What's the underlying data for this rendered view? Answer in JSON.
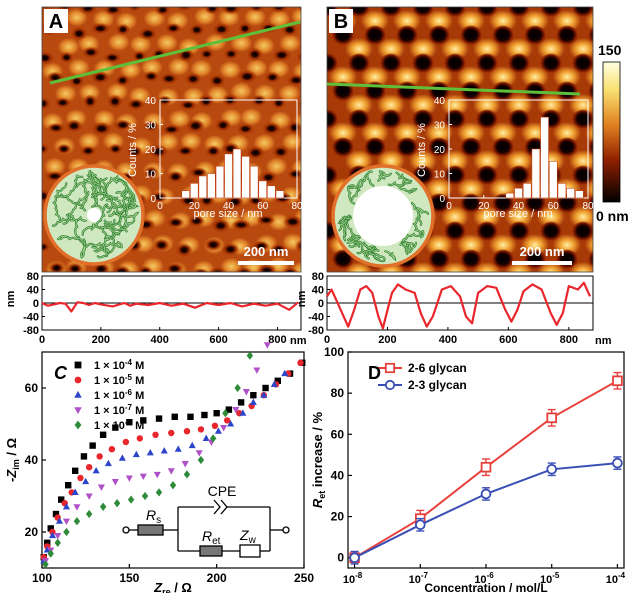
{
  "panel_a": {
    "letter": "A",
    "inset_xlabel": "pore size / nm",
    "inset_ylabel": "Counts / %",
    "scale_bar": "200 nm"
  },
  "panel_b": {
    "letter": "B",
    "inset_xlabel": "pore size / nm",
    "inset_ylabel": "Counts / %",
    "scale_bar": "200 nm"
  },
  "colorbar": {
    "max_label": "150",
    "min_label": "0 nm"
  },
  "profiles": {
    "y_unit": "nm",
    "x_unit": "nm"
  },
  "panel_c": {
    "letter": "C",
    "circuit": {
      "cpe": "CPE",
      "rs": "R",
      "rs_sub": "s",
      "ret": "R",
      "ret_sub": "et",
      "zw": "Z",
      "zw_sub": "w"
    }
  },
  "panel_d": {
    "letter": "D"
  },
  "colors": {
    "line_green": "#5fbf3a",
    "profile_red": "#e8262c",
    "pore_fill": "#cfe8c0",
    "pore_ring": "#e0702a",
    "chain_green": "#2e7d32",
    "bar_white": "#ffffff",
    "d_red": "#e8413c",
    "d_blue": "#3a4fb5"
  },
  "chart_data": [
    {
      "type": "bar",
      "panel": "A-inset",
      "x": [
        15,
        20,
        25,
        30,
        35,
        40,
        45,
        50,
        55,
        60,
        65,
        70
      ],
      "values": [
        3,
        6,
        9,
        10,
        13,
        18,
        20,
        17,
        13,
        7,
        5,
        3
      ],
      "xlabel": "pore size / nm",
      "ylabel": "Counts / %",
      "xlim": [
        0,
        80
      ],
      "ylim": [
        0,
        40
      ],
      "xticks": [
        0,
        20,
        40,
        60,
        80
      ],
      "yticks": [
        0,
        10,
        20,
        30,
        40
      ]
    },
    {
      "type": "bar",
      "panel": "B-inset",
      "x": [
        35,
        40,
        45,
        50,
        55,
        60,
        65,
        70,
        75
      ],
      "values": [
        2,
        4,
        6,
        20,
        33,
        15,
        6,
        4,
        3
      ],
      "xlabel": "pore size / nm",
      "ylabel": "Counts / %",
      "xlim": [
        0,
        80
      ],
      "ylim": [
        0,
        40
      ],
      "xticks": [
        0,
        20,
        40,
        60,
        80
      ],
      "yticks": [
        0,
        10,
        20,
        30,
        40
      ]
    },
    {
      "type": "line",
      "panel": "A-profile",
      "x": [
        0,
        20,
        40,
        60,
        80,
        100,
        120,
        140,
        160,
        180,
        200,
        240,
        280,
        300,
        320,
        360,
        400,
        440,
        480,
        520,
        560,
        600,
        640,
        680,
        720,
        760,
        800,
        840,
        870
      ],
      "y": [
        0,
        -8,
        -4,
        0,
        -2,
        -25,
        2,
        0,
        -6,
        0,
        -4,
        -10,
        0,
        -8,
        -2,
        -6,
        0,
        -8,
        -2,
        -14,
        0,
        -6,
        0,
        -10,
        -2,
        -8,
        -2,
        -20,
        2
      ],
      "xlim": [
        0,
        880
      ],
      "ylim": [
        -80,
        80
      ],
      "xticks": [
        0,
        200,
        400,
        600,
        800
      ],
      "yticks": [
        -80,
        -40,
        0,
        40,
        80
      ]
    },
    {
      "type": "line",
      "panel": "B-profile",
      "x": [
        0,
        15,
        30,
        50,
        70,
        90,
        110,
        130,
        150,
        170,
        185,
        200,
        215,
        235,
        260,
        290,
        310,
        330,
        350,
        380,
        410,
        440,
        460,
        480,
        500,
        530,
        560,
        590,
        610,
        630,
        650,
        680,
        710,
        740,
        760,
        780,
        800,
        830,
        850,
        870
      ],
      "y": [
        20,
        40,
        10,
        -30,
        -70,
        -20,
        40,
        50,
        30,
        -40,
        -75,
        -20,
        30,
        55,
        40,
        30,
        -30,
        -70,
        -40,
        40,
        50,
        20,
        -40,
        -60,
        30,
        50,
        45,
        -20,
        -55,
        -20,
        35,
        55,
        40,
        -30,
        -65,
        -30,
        50,
        40,
        60,
        20
      ],
      "xlim": [
        0,
        880
      ],
      "ylim": [
        -80,
        80
      ],
      "xticks": [
        0,
        200,
        400,
        600,
        800
      ],
      "yticks": [
        -80,
        -40,
        0,
        40,
        80
      ]
    },
    {
      "type": "scatter",
      "panel": "C",
      "xlabel": "Z",
      "xlabel_sub": "re",
      "xlabel_unit": " / Ω",
      "ylabel_prefix": "-Z",
      "ylabel_sub": "im",
      "ylabel_unit": " / Ω",
      "xlim": [
        100,
        250
      ],
      "ylim": [
        10,
        70
      ],
      "xticks": [
        100,
        150,
        200,
        250
      ],
      "yticks": [
        20,
        40,
        60
      ],
      "series": [
        {
          "name": "1 × 10",
          "sup": "-4",
          "unit": " M",
          "color": "#000000",
          "marker": "square",
          "x": [
            101,
            103,
            105,
            108,
            111,
            115,
            119,
            124,
            129,
            135,
            142,
            150,
            158,
            167,
            176,
            185,
            193,
            200,
            207,
            214,
            221,
            228,
            235,
            242,
            249
          ],
          "y": [
            13,
            17,
            21,
            25,
            29,
            33,
            37,
            41,
            44,
            47,
            49,
            50.5,
            51,
            51.5,
            52,
            52,
            52.5,
            53,
            54,
            56,
            58,
            60,
            62,
            64,
            67
          ]
        },
        {
          "name": "1 × 10",
          "sup": "-5",
          "unit": " M",
          "color": "#e8262c",
          "marker": "circle",
          "x": [
            101,
            103,
            106,
            109,
            113,
            117,
            122,
            127,
            133,
            140,
            148,
            156,
            165,
            174,
            183,
            191,
            199,
            206,
            213,
            220,
            227,
            234,
            241,
            248
          ],
          "y": [
            13,
            16,
            20,
            24,
            28,
            31,
            35,
            38,
            41,
            43,
            45,
            46,
            47,
            47.5,
            48,
            48.5,
            49.5,
            51,
            53,
            55,
            58,
            61,
            64,
            67
          ]
        },
        {
          "name": "1 × 10",
          "sup": "-6",
          "unit": " M",
          "color": "#2d45c8",
          "marker": "triangle-up",
          "x": [
            101,
            103,
            106,
            110,
            114,
            119,
            125,
            131,
            138,
            146,
            154,
            162,
            170,
            178,
            186,
            194,
            201,
            208,
            215,
            221,
            227,
            233,
            239
          ],
          "y": [
            12,
            15,
            19,
            23,
            27,
            31,
            34,
            37,
            39,
            40.5,
            41.5,
            42,
            42.5,
            43,
            44,
            46,
            48,
            50,
            53,
            56,
            58,
            61,
            64
          ]
        },
        {
          "name": "1 × 10",
          "sup": "-7",
          "unit": " M",
          "color": "#b050c8",
          "marker": "triangle-down",
          "x": [
            102,
            105,
            109,
            114,
            120,
            127,
            134,
            142,
            150,
            158,
            166,
            174,
            182,
            190,
            197,
            204,
            211,
            217,
            223,
            229
          ],
          "y": [
            12,
            15,
            19,
            23,
            27,
            30,
            32.5,
            34,
            35,
            35.5,
            36,
            37,
            39,
            42,
            45,
            49,
            54,
            59,
            65,
            72
          ]
        },
        {
          "name": "1 × 10",
          "sup": "-8",
          "unit": " M",
          "color": "#2e8b3a",
          "marker": "diamond",
          "x": [
            102,
            105,
            109,
            114,
            120,
            127,
            135,
            143,
            151,
            159,
            167,
            175,
            183,
            191,
            198,
            205,
            212,
            219
          ],
          "y": [
            11,
            14,
            17,
            20,
            23,
            25,
            27,
            28,
            29,
            30,
            31,
            33,
            36,
            40,
            46,
            53,
            60,
            69
          ]
        }
      ]
    },
    {
      "type": "line",
      "panel": "D",
      "ylabel": "R",
      "ylabel_sub": "et",
      "ylabel_unit": " increase / %",
      "xlabel": "Concentration / mol/L",
      "xticks_exp": [
        "-8",
        "-7",
        "-6",
        "-5",
        "-4"
      ],
      "tick_base": "10",
      "ylim": [
        -5,
        100
      ],
      "yticks": [
        0,
        20,
        40,
        60,
        80,
        100
      ],
      "series": [
        {
          "name": "2-6 glycan",
          "color": "#e8413c",
          "marker": "square",
          "x": [
            -8,
            -7,
            -6,
            -5,
            -4
          ],
          "y": [
            0,
            19,
            44,
            68,
            86
          ],
          "err": [
            3,
            4,
            4,
            4,
            4
          ]
        },
        {
          "name": "2-3 glycan",
          "color": "#3a4fb5",
          "marker": "circle",
          "x": [
            -8,
            -7,
            -6,
            -5,
            -4
          ],
          "y": [
            0,
            16,
            31,
            43,
            46
          ],
          "err": [
            3,
            3,
            3,
            3,
            3
          ]
        }
      ]
    }
  ]
}
